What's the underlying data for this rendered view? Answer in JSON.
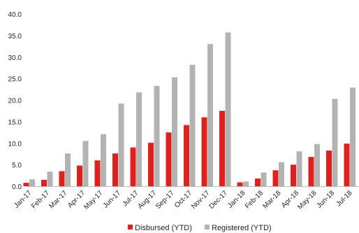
{
  "chart_data": {
    "type": "bar",
    "title": "",
    "xlabel": "",
    "ylabel": "",
    "ylim": [
      0,
      40
    ],
    "yticks": [
      "0.0",
      "5.0",
      "10.0",
      "15.0",
      "20.0",
      "25.0",
      "30.0",
      "35.0",
      "40.0"
    ],
    "grid": false,
    "legend_position": "bottom-center",
    "categories": [
      "Jan-17",
      "Feb-17",
      "Mar-17",
      "Apr-17",
      "May-17",
      "Jun-17",
      "Jul-17",
      "Aug-17",
      "Sep-17",
      "Oct-17",
      "Nov-17",
      "Dec-17",
      "Jan-18",
      "Feb-18",
      "Mar-18",
      "Apr-18",
      "May-18",
      "Jun-18",
      "Jul-18"
    ],
    "series": [
      {
        "name": "Disbursed (YTD)",
        "color": "#e0201c",
        "values": [
          0.8,
          1.5,
          3.5,
          4.8,
          6.0,
          7.6,
          9.0,
          10.1,
          12.5,
          14.2,
          16.0,
          17.5,
          0.9,
          1.8,
          3.7,
          5.0,
          6.8,
          8.3,
          9.9
        ]
      },
      {
        "name": "Registered (YTD)",
        "color": "#b3b3b3",
        "values": [
          1.6,
          3.4,
          7.6,
          10.5,
          12.1,
          19.2,
          21.8,
          23.3,
          25.3,
          28.2,
          33.0,
          35.7,
          1.1,
          3.2,
          5.6,
          8.1,
          9.8,
          20.3,
          22.9
        ]
      }
    ]
  }
}
